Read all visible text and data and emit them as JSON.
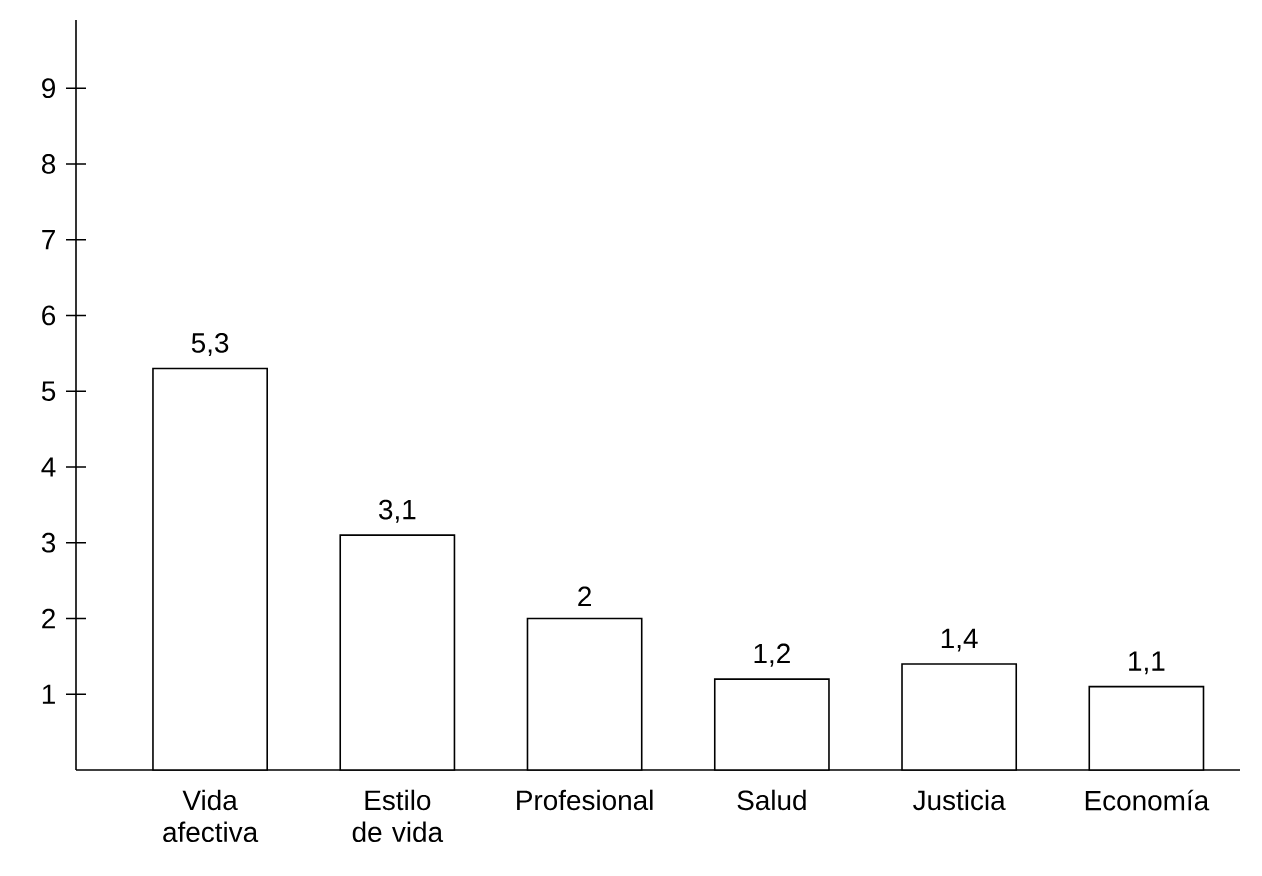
{
  "chart_data": {
    "type": "bar",
    "categories": [
      "Vida afectiva",
      "Estilo de vida",
      "Profesional",
      "Salud",
      "Justicia",
      "Economía"
    ],
    "values": [
      5.3,
      3.1,
      2,
      1.2,
      1.4,
      1.1
    ],
    "value_labels": [
      "5,3",
      "3,1",
      "2",
      "1,2",
      "1,4",
      "1,1"
    ],
    "color": "#ffffff",
    "ylim": [
      0,
      9.9
    ],
    "yticks": [
      1,
      2,
      3,
      4,
      5,
      6,
      7,
      8,
      9
    ]
  }
}
